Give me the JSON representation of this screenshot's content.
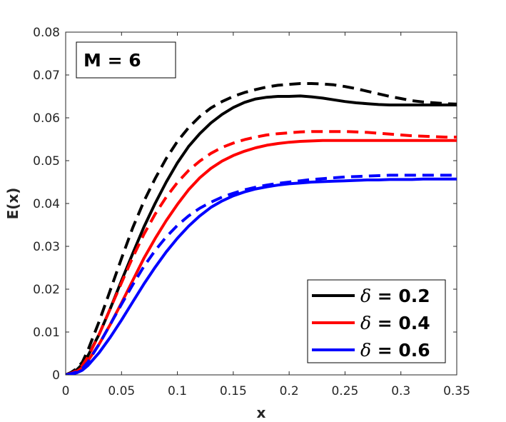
{
  "chart_data": {
    "type": "line",
    "title": "",
    "xlabel": "x",
    "ylabel": "E(x)",
    "xlim": [
      0,
      0.35
    ],
    "ylim": [
      0,
      0.08
    ],
    "xticks": [
      0,
      0.05,
      0.1,
      0.15,
      0.2,
      0.25,
      0.3,
      0.35
    ],
    "xtick_labels": [
      "0",
      "0.05",
      "0.1",
      "0.15",
      "0.2",
      "0.25",
      "0.3",
      "0.35"
    ],
    "yticks": [
      0,
      0.01,
      0.02,
      0.03,
      0.04,
      0.05,
      0.06,
      0.07,
      0.08
    ],
    "ytick_labels": [
      "0",
      "0.01",
      "0.02",
      "0.03",
      "0.04",
      "0.05",
      "0.06",
      "0.07",
      "0.08"
    ],
    "grid": false,
    "annotation": "M = 6",
    "legend": {
      "placement": "bottom-right",
      "entries": [
        {
          "symbol": "δ",
          "text": " = 0.2",
          "color": "#000000"
        },
        {
          "symbol": "δ",
          "text": " = 0.4",
          "color": "#ff0000"
        },
        {
          "symbol": "δ",
          "text": " = 0.6",
          "color": "#0000ff"
        }
      ]
    },
    "series": [
      {
        "name": "δ = 0.2",
        "style": "solid",
        "color": "#000000",
        "x": [
          0,
          0.005,
          0.01,
          0.015,
          0.02,
          0.03,
          0.04,
          0.05,
          0.06,
          0.07,
          0.08,
          0.09,
          0.1,
          0.11,
          0.12,
          0.13,
          0.14,
          0.15,
          0.16,
          0.17,
          0.18,
          0.19,
          0.2,
          0.21,
          0.22,
          0.23,
          0.24,
          0.25,
          0.26,
          0.27,
          0.28,
          0.29,
          0.3,
          0.31,
          0.32,
          0.33,
          0.34,
          0.35
        ],
        "y": [
          0,
          0.0005,
          0.0012,
          0.0025,
          0.0045,
          0.0095,
          0.0155,
          0.022,
          0.0283,
          0.0345,
          0.04,
          0.045,
          0.0495,
          0.0533,
          0.0563,
          0.0588,
          0.0608,
          0.0624,
          0.0636,
          0.0644,
          0.0648,
          0.065,
          0.065,
          0.0651,
          0.0649,
          0.0646,
          0.0642,
          0.0638,
          0.0635,
          0.0633,
          0.0631,
          0.063,
          0.063,
          0.063,
          0.063,
          0.063,
          0.063,
          0.063
        ]
      },
      {
        "name": "δ = 0.2 (dashed)",
        "style": "dashed",
        "color": "#000000",
        "x": [
          0,
          0.005,
          0.01,
          0.015,
          0.02,
          0.03,
          0.04,
          0.05,
          0.06,
          0.07,
          0.08,
          0.09,
          0.1,
          0.11,
          0.12,
          0.13,
          0.14,
          0.15,
          0.16,
          0.17,
          0.18,
          0.19,
          0.2,
          0.21,
          0.22,
          0.23,
          0.24,
          0.25,
          0.26,
          0.27,
          0.28,
          0.29,
          0.3,
          0.31,
          0.32,
          0.33,
          0.34,
          0.35
        ],
        "y": [
          0,
          0.0006,
          0.0015,
          0.003,
          0.0058,
          0.0125,
          0.0198,
          0.0272,
          0.0343,
          0.0405,
          0.0458,
          0.0505,
          0.0545,
          0.0577,
          0.0603,
          0.0623,
          0.0638,
          0.065,
          0.0659,
          0.0666,
          0.0672,
          0.0676,
          0.0678,
          0.068,
          0.068,
          0.0679,
          0.0677,
          0.0673,
          0.0668,
          0.0662,
          0.0656,
          0.065,
          0.0645,
          0.064,
          0.0637,
          0.0635,
          0.0633,
          0.0632
        ]
      },
      {
        "name": "δ = 0.4",
        "style": "solid",
        "color": "#ff0000",
        "x": [
          0,
          0.005,
          0.01,
          0.015,
          0.02,
          0.03,
          0.04,
          0.05,
          0.06,
          0.07,
          0.08,
          0.09,
          0.1,
          0.11,
          0.12,
          0.13,
          0.14,
          0.15,
          0.16,
          0.17,
          0.18,
          0.19,
          0.2,
          0.21,
          0.22,
          0.23,
          0.24,
          0.25,
          0.26,
          0.27,
          0.28,
          0.29,
          0.3,
          0.31,
          0.32,
          0.33,
          0.34,
          0.35
        ],
        "y": [
          0,
          0.0003,
          0.0008,
          0.0017,
          0.0033,
          0.0072,
          0.0118,
          0.0168,
          0.022,
          0.0272,
          0.0318,
          0.036,
          0.0398,
          0.0432,
          0.046,
          0.0482,
          0.0499,
          0.0512,
          0.0522,
          0.053,
          0.0536,
          0.054,
          0.0543,
          0.0545,
          0.0546,
          0.0547,
          0.0547,
          0.0547,
          0.0547,
          0.0547,
          0.0547,
          0.0547,
          0.0547,
          0.0547,
          0.0547,
          0.0547,
          0.0547,
          0.0547
        ]
      },
      {
        "name": "δ = 0.4 (dashed)",
        "style": "dashed",
        "color": "#ff0000",
        "x": [
          0,
          0.005,
          0.01,
          0.015,
          0.02,
          0.03,
          0.04,
          0.05,
          0.06,
          0.07,
          0.08,
          0.09,
          0.1,
          0.11,
          0.12,
          0.13,
          0.14,
          0.15,
          0.16,
          0.17,
          0.18,
          0.19,
          0.2,
          0.21,
          0.22,
          0.23,
          0.24,
          0.25,
          0.26,
          0.27,
          0.28,
          0.29,
          0.3,
          0.31,
          0.32,
          0.33,
          0.34,
          0.35
        ],
        "y": [
          0,
          0.0004,
          0.001,
          0.0022,
          0.0042,
          0.0095,
          0.0155,
          0.0215,
          0.0274,
          0.0328,
          0.0375,
          0.0415,
          0.0449,
          0.0477,
          0.0499,
          0.0517,
          0.0531,
          0.0541,
          0.0549,
          0.0555,
          0.056,
          0.0563,
          0.0565,
          0.0567,
          0.0568,
          0.0568,
          0.0568,
          0.0568,
          0.0567,
          0.0566,
          0.0564,
          0.0562,
          0.056,
          0.0558,
          0.0557,
          0.0556,
          0.0555,
          0.0555
        ]
      },
      {
        "name": "δ = 0.6",
        "style": "solid",
        "color": "#0000ff",
        "x": [
          0,
          0.005,
          0.01,
          0.015,
          0.02,
          0.03,
          0.04,
          0.05,
          0.06,
          0.07,
          0.08,
          0.09,
          0.1,
          0.11,
          0.12,
          0.13,
          0.14,
          0.15,
          0.16,
          0.17,
          0.18,
          0.19,
          0.2,
          0.21,
          0.22,
          0.23,
          0.24,
          0.25,
          0.26,
          0.27,
          0.28,
          0.29,
          0.3,
          0.31,
          0.32,
          0.33,
          0.34,
          0.35
        ],
        "y": [
          0,
          0.0002,
          0.0005,
          0.0011,
          0.0022,
          0.0052,
          0.0088,
          0.0128,
          0.017,
          0.0212,
          0.0251,
          0.0287,
          0.0319,
          0.0347,
          0.0371,
          0.0391,
          0.0406,
          0.0418,
          0.0427,
          0.0434,
          0.0439,
          0.0443,
          0.0446,
          0.0448,
          0.045,
          0.0451,
          0.0452,
          0.0453,
          0.0454,
          0.0455,
          0.0455,
          0.0456,
          0.0456,
          0.0456,
          0.0457,
          0.0457,
          0.0457,
          0.0457
        ]
      },
      {
        "name": "δ = 0.6 (dashed)",
        "style": "dashed",
        "color": "#0000ff",
        "x": [
          0,
          0.005,
          0.01,
          0.015,
          0.02,
          0.03,
          0.04,
          0.05,
          0.06,
          0.07,
          0.08,
          0.09,
          0.1,
          0.11,
          0.12,
          0.13,
          0.14,
          0.15,
          0.16,
          0.17,
          0.18,
          0.19,
          0.2,
          0.21,
          0.22,
          0.23,
          0.24,
          0.25,
          0.26,
          0.27,
          0.28,
          0.29,
          0.3,
          0.31,
          0.32,
          0.33,
          0.34,
          0.35
        ],
        "y": [
          0,
          0.0003,
          0.0007,
          0.0015,
          0.003,
          0.0072,
          0.0118,
          0.0165,
          0.021,
          0.0253,
          0.029,
          0.0322,
          0.0349,
          0.0371,
          0.0389,
          0.0403,
          0.0415,
          0.0424,
          0.0432,
          0.0438,
          0.0443,
          0.0447,
          0.045,
          0.0453,
          0.0456,
          0.0458,
          0.046,
          0.0462,
          0.0463,
          0.0464,
          0.0465,
          0.0466,
          0.0466,
          0.0466,
          0.0466,
          0.0466,
          0.0466,
          0.0466
        ]
      }
    ]
  }
}
